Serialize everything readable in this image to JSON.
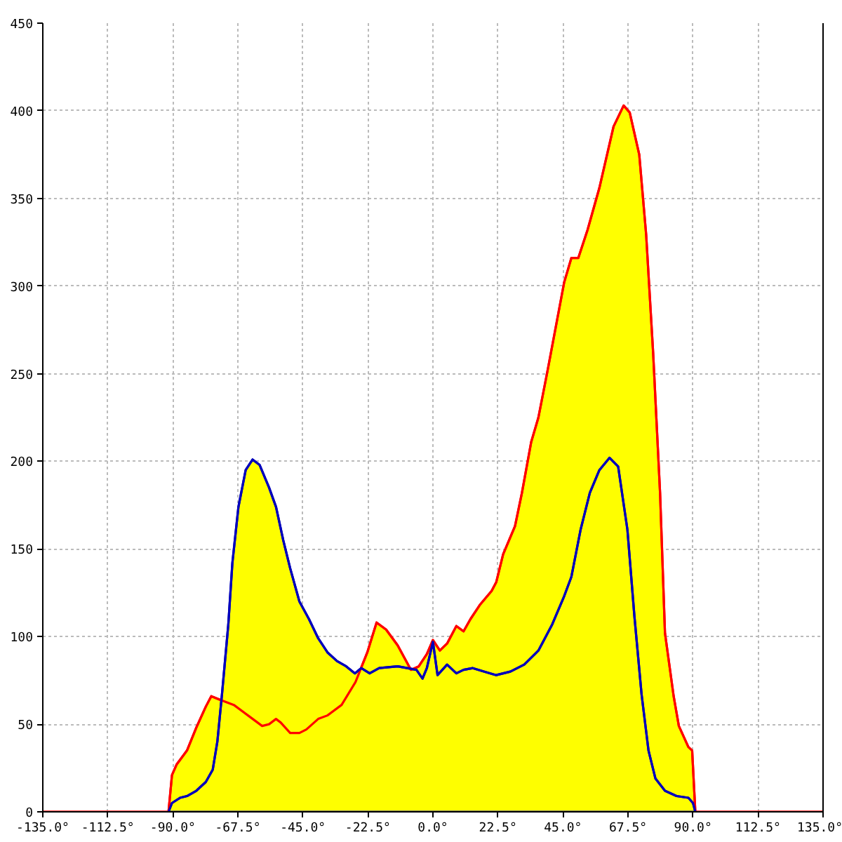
{
  "chart_data": {
    "type": "area",
    "xlim": [
      -135,
      135
    ],
    "xticks": [
      {
        "value": -135,
        "label": "-135.0°"
      },
      {
        "value": -112.5,
        "label": "-112.5°"
      },
      {
        "value": -90,
        "label": "-90.0°"
      },
      {
        "value": -67.5,
        "label": "-67.5°"
      },
      {
        "value": -45,
        "label": "-45.0°"
      },
      {
        "value": -22.5,
        "label": "-22.5°"
      },
      {
        "value": 0,
        "label": "0.0°"
      },
      {
        "value": 22.5,
        "label": "22.5°"
      },
      {
        "value": 45,
        "label": "45.0°"
      },
      {
        "value": 67.5,
        "label": "67.5°"
      },
      {
        "value": 90,
        "label": "90.0°"
      },
      {
        "value": 112.5,
        "label": "112.5°"
      },
      {
        "value": 135,
        "label": "135.0°"
      }
    ],
    "ylim": [
      0,
      450
    ],
    "yticks": [
      0,
      50,
      100,
      150,
      200,
      250,
      300,
      350,
      400,
      450
    ],
    "grid": true,
    "series": [
      {
        "color": "#ff0000",
        "x": [
          -135,
          -91.5,
          -90.3,
          -88.7,
          -85.1,
          -81.9,
          -78.6,
          -76.7,
          -73.7,
          -68.9,
          -64.0,
          -59.1,
          -56.7,
          -54.3,
          -52.7,
          -49.4,
          -46.2,
          -43.8,
          -39.7,
          -36.5,
          -31.6,
          -26.8,
          -22.7,
          -19.5,
          -16.2,
          -12.2,
          -7.6,
          -4.9,
          -2.1,
          0.0,
          2.4,
          4.9,
          8.1,
          10.6,
          13.0,
          16.2,
          20.3,
          21.9,
          24.3,
          28.4,
          30.8,
          34.0,
          36.5,
          39.7,
          45.4,
          47.9,
          50.3,
          53.5,
          57.6,
          62.5,
          66.0,
          68.1,
          71.4,
          73.8,
          76.2,
          78.6,
          80.3,
          83.3,
          85.1,
          88.4,
          89.7,
          90.8,
          135
        ],
        "values": [
          0,
          0,
          21,
          27,
          35,
          48,
          60,
          66,
          64,
          61,
          55,
          49,
          50,
          53,
          51,
          45,
          45,
          47,
          53,
          55,
          61,
          74,
          91,
          108,
          104,
          95,
          81,
          83,
          90,
          98,
          92,
          96,
          106,
          103,
          110,
          118,
          126,
          131,
          147,
          163,
          182,
          211,
          225,
          252,
          302,
          316,
          316,
          332,
          356,
          391,
          403,
          399,
          375,
          329,
          262,
          182,
          102,
          66,
          49,
          37,
          35,
          0,
          0
        ]
      },
      {
        "color": "#0000bb",
        "x": [
          -91.5,
          -90.3,
          -87.5,
          -85.1,
          -81.9,
          -78.6,
          -76.2,
          -74.6,
          -73.0,
          -70.8,
          -69.4,
          -67.3,
          -64.8,
          -62.4,
          -60.0,
          -56.7,
          -54.3,
          -51.8,
          -49.4,
          -46.2,
          -42.9,
          -39.7,
          -36.5,
          -33.2,
          -30.0,
          -27.0,
          -24.8,
          -21.9,
          -18.6,
          -12.2,
          -8.9,
          -5.7,
          -3.6,
          -2.1,
          0.0,
          1.6,
          4.9,
          8.1,
          10.6,
          13.8,
          17.8,
          21.9,
          26.8,
          31.6,
          36.5,
          41.3,
          45.4,
          47.9,
          51.1,
          54.3,
          57.6,
          61.1,
          64.1,
          67.3,
          69.7,
          72.2,
          74.6,
          77.0,
          80.3,
          84.3,
          88.4,
          90.0,
          90.8
        ],
        "values": [
          0,
          5,
          8,
          9,
          12,
          17,
          24,
          40,
          67,
          107,
          142,
          174,
          195,
          201,
          198,
          185,
          174,
          155,
          139,
          120,
          110,
          99,
          91,
          86,
          83,
          79,
          82,
          79,
          82,
          83,
          82,
          81,
          76,
          82,
          97,
          78,
          84,
          79,
          81,
          82,
          80,
          78,
          80,
          84,
          92,
          107,
          123,
          134,
          161,
          182,
          195,
          202,
          197,
          161,
          112,
          67,
          35,
          19,
          12,
          9,
          8,
          5,
          0
        ]
      }
    ]
  }
}
